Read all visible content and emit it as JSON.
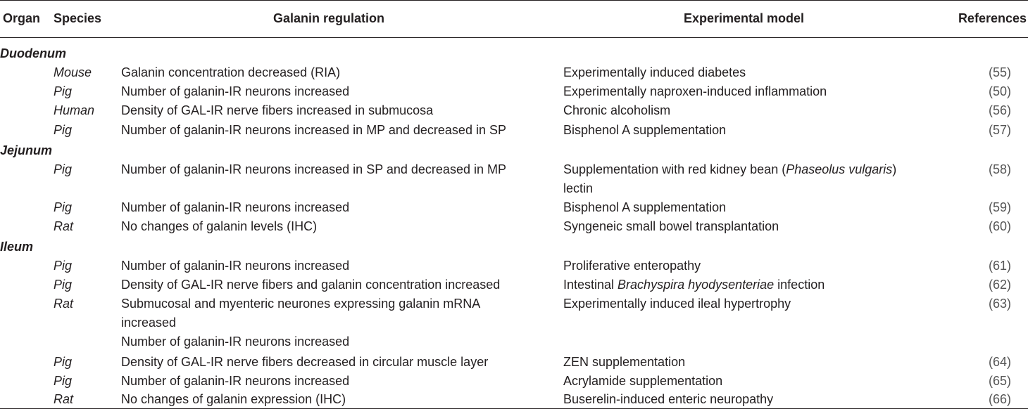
{
  "headers": {
    "organ": "Organ",
    "species": "Species",
    "regulation": "Galanin regulation",
    "model": "Experimental model",
    "references": "References"
  },
  "groups": [
    {
      "organ": "Duodenum",
      "rows": [
        {
          "species": "Mouse",
          "regulation": [
            "Galanin concentration decreased (RIA)"
          ],
          "model": [
            "Experimentally induced diabetes"
          ],
          "ref": "(55)"
        },
        {
          "species": "Pig",
          "regulation": [
            "Number of galanin-IR neurons increased"
          ],
          "model": [
            "Experimentally naproxen-induced inflammation"
          ],
          "ref": "(50)"
        },
        {
          "species": "Human",
          "regulation": [
            "Density of GAL-IR nerve fibers increased in submucosa"
          ],
          "model": [
            "Chronic alcoholism"
          ],
          "ref": "(56)"
        },
        {
          "species": "Pig",
          "regulation": [
            "Number of galanin-IR neurons increased in MP and decreased in SP"
          ],
          "model": [
            "Bisphenol A supplementation"
          ],
          "ref": "(57)"
        }
      ]
    },
    {
      "organ": "Jejunum",
      "rows": [
        {
          "species": "Pig",
          "regulation": [
            "Number of galanin-IR neurons increased in SP and decreased in MP"
          ],
          "model_parts": {
            "pre": "Supplementation with red kidney bean (",
            "italic": "Phaseolus vulgaris",
            "post": ")",
            "line2": "lectin"
          },
          "ref": "(58)"
        },
        {
          "species": "Pig",
          "regulation": [
            "Number of galanin-IR neurons increased"
          ],
          "model": [
            "Bisphenol A supplementation"
          ],
          "ref": "(59)"
        },
        {
          "species": "Rat",
          "regulation": [
            "No changes of galanin levels (IHC)"
          ],
          "model": [
            "Syngeneic small bowel transplantation"
          ],
          "ref": "(60)"
        }
      ]
    },
    {
      "organ": "Ileum",
      "rows": [
        {
          "species": "Pig",
          "regulation": [
            "Number of galanin-IR neurons increased"
          ],
          "model": [
            "Proliferative enteropathy"
          ],
          "ref": "(61)"
        },
        {
          "species": "Pig",
          "regulation": [
            "Density of GAL-IR nerve fibers and galanin concentration increased"
          ],
          "model_parts": {
            "pre": "Intestinal ",
            "italic": "Brachyspira hyodysenteriae",
            "post": " infection"
          },
          "ref": "(62)"
        },
        {
          "species": "Rat",
          "regulation": [
            "Submucosal and myenteric neurones expressing galanin mRNA",
            "increased",
            "Number of galanin-IR neurons increased"
          ],
          "model": [
            "Experimentally induced ileal hypertrophy"
          ],
          "ref": "(63)"
        },
        {
          "species": "Pig",
          "regulation": [
            "Density of GAL-IR nerve fibers decreased in circular muscle layer"
          ],
          "model": [
            "ZEN supplementation"
          ],
          "ref": "(64)"
        },
        {
          "species": "Pig",
          "regulation": [
            "Number of galanin-IR neurons increased"
          ],
          "model": [
            "Acrylamide supplementation"
          ],
          "ref": "(65)"
        },
        {
          "species": "Rat",
          "regulation": [
            "No changes of galanin expression (IHC)"
          ],
          "model": [
            "Buserelin-induced enteric neuropathy"
          ],
          "ref": "(66)"
        }
      ]
    }
  ]
}
